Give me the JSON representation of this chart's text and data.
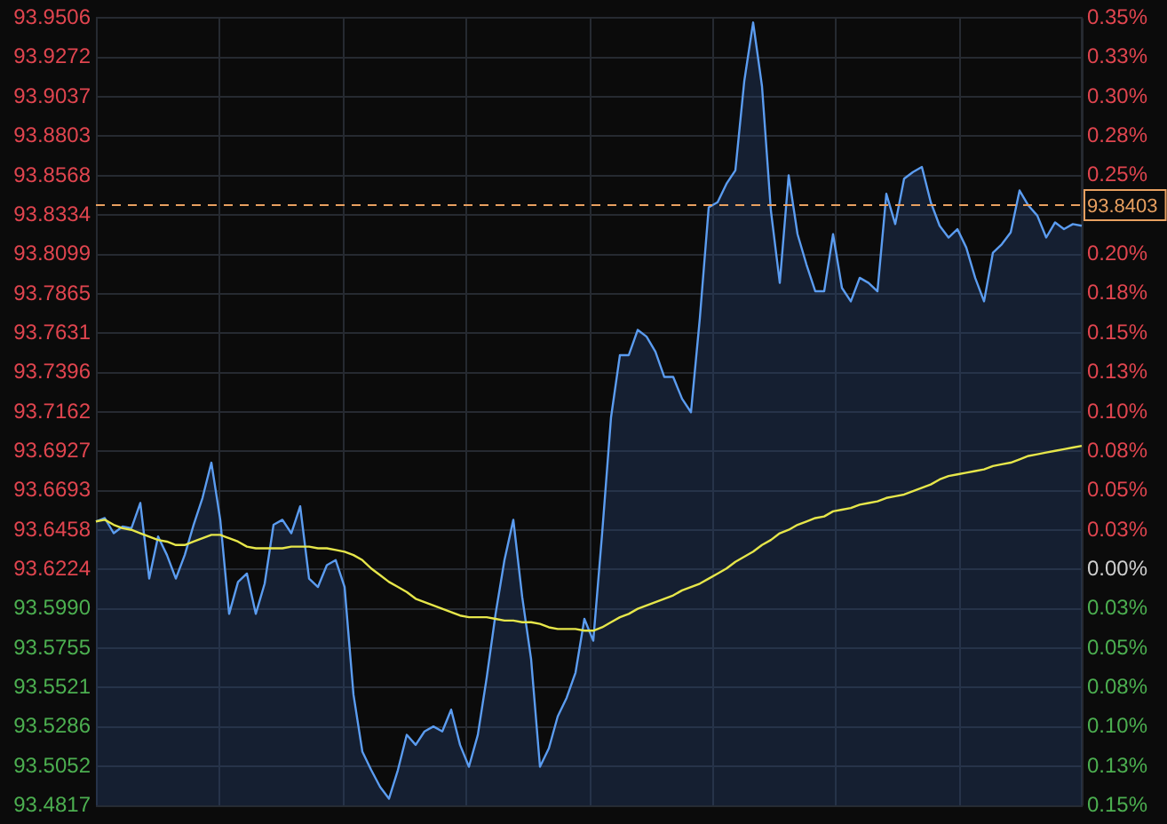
{
  "chart_data": {
    "type": "line",
    "categories": [
      null,
      null,
      null,
      null,
      null,
      null,
      null,
      null,
      null,
      null,
      null,
      null,
      null,
      null,
      null,
      null,
      null,
      null,
      null,
      null,
      null,
      null,
      null,
      null,
      null,
      null,
      null,
      null,
      null,
      null,
      null,
      null,
      null,
      null,
      null,
      null,
      null,
      null,
      null,
      null,
      null,
      null,
      null,
      null,
      null,
      null,
      null,
      null,
      null,
      null,
      null,
      null,
      null,
      null,
      null,
      null,
      null,
      null,
      null,
      null,
      null,
      null,
      null,
      null,
      null,
      null,
      null,
      null,
      null,
      null,
      null,
      null,
      null,
      null,
      null,
      null,
      null,
      null,
      null,
      null,
      null,
      null,
      null,
      null,
      null,
      null,
      null,
      null,
      null,
      null,
      null,
      null,
      null,
      null,
      null,
      null,
      null,
      null,
      null,
      null,
      null,
      null,
      null,
      null,
      null,
      null,
      null,
      null,
      null,
      null,
      null,
      null
    ],
    "series": [
      {
        "type": "area",
        "color": "#5b9cf0",
        "values": [
          93.651,
          93.653,
          93.644,
          93.648,
          93.647,
          93.662,
          93.617,
          93.642,
          93.631,
          93.617,
          93.631,
          93.649,
          93.665,
          93.686,
          93.652,
          93.596,
          93.615,
          93.62,
          93.596,
          93.614,
          93.649,
          93.652,
          93.644,
          93.66,
          93.617,
          93.612,
          93.625,
          93.628,
          93.612,
          93.548,
          93.514,
          93.503,
          93.493,
          93.486,
          93.503,
          93.524,
          93.518,
          93.526,
          93.529,
          93.526,
          93.539,
          93.518,
          93.505,
          93.524,
          93.558,
          93.596,
          93.628,
          93.652,
          93.606,
          93.569,
          93.505,
          93.516,
          93.535,
          93.546,
          93.561,
          93.593,
          93.58,
          93.644,
          93.713,
          93.75,
          93.75,
          93.765,
          93.761,
          93.752,
          93.737,
          93.737,
          93.724,
          93.716,
          93.772,
          93.838,
          93.841,
          93.852,
          93.86,
          93.913,
          93.948,
          93.91,
          93.836,
          93.793,
          93.857,
          93.822,
          93.804,
          93.788,
          93.788,
          93.822,
          93.79,
          93.782,
          93.796,
          93.793,
          93.788,
          93.846,
          93.828,
          93.855,
          93.859,
          93.862,
          93.841,
          93.827,
          93.82,
          93.825,
          93.814,
          93.796,
          93.782,
          93.811,
          93.816,
          93.823,
          93.848,
          93.839,
          93.833,
          93.82,
          93.829,
          93.825,
          93.828,
          93.827
        ]
      },
      {
        "type": "line",
        "color": "#e6e64a",
        "values": [
          93.651,
          93.652,
          93.649,
          93.647,
          93.646,
          93.644,
          93.642,
          93.64,
          93.639,
          93.637,
          93.637,
          93.639,
          93.641,
          93.643,
          93.643,
          93.641,
          93.639,
          93.636,
          93.635,
          93.635,
          93.635,
          93.635,
          93.636,
          93.636,
          93.636,
          93.635,
          93.635,
          93.634,
          93.633,
          93.631,
          93.628,
          93.623,
          93.619,
          93.615,
          93.612,
          93.609,
          93.605,
          93.603,
          93.601,
          93.599,
          93.597,
          93.595,
          93.594,
          93.594,
          93.594,
          93.593,
          93.592,
          93.592,
          93.591,
          93.591,
          93.59,
          93.588,
          93.587,
          93.587,
          93.587,
          93.586,
          93.586,
          93.588,
          93.591,
          93.594,
          93.596,
          93.599,
          93.601,
          93.603,
          93.605,
          93.607,
          93.61,
          93.612,
          93.614,
          93.617,
          93.62,
          93.623,
          93.627,
          93.63,
          93.633,
          93.637,
          93.64,
          93.644,
          93.646,
          93.649,
          93.651,
          93.653,
          93.654,
          93.657,
          93.658,
          93.659,
          93.661,
          93.662,
          93.663,
          93.665,
          93.666,
          93.667,
          93.669,
          93.671,
          93.673,
          93.676,
          93.678,
          93.679,
          93.68,
          93.681,
          93.682,
          93.684,
          93.685,
          93.686,
          93.688,
          93.69,
          93.691,
          93.692,
          93.693,
          93.694,
          93.695,
          93.696
        ]
      }
    ],
    "ylim": [
      93.4817,
      93.9506
    ],
    "yticks": [
      93.4817,
      93.5052,
      93.5286,
      93.5521,
      93.5755,
      {
        "value": 93.599,
        "label": "93.5990"
      },
      93.6224,
      93.6458,
      93.6693,
      93.6927,
      93.7162,
      93.7396,
      93.7631,
      93.7865,
      93.8099,
      93.8334,
      93.8568,
      93.8803,
      93.9037,
      93.9272,
      93.9506
    ],
    "y2lim": [
      -0.1503,
      0.3506
    ],
    "y2ticks": [
      {
        "value": -0.1503,
        "label": "0.15%"
      },
      {
        "value": -0.1253,
        "label": "0.13%"
      },
      {
        "value": -0.1002,
        "label": "0.10%"
      },
      {
        "value": -0.0752,
        "label": "0.08%"
      },
      {
        "value": -0.0501,
        "label": "0.05%"
      },
      {
        "value": -0.0251,
        "label": "0.03%"
      },
      {
        "value": 0,
        "label": "0.00%"
      },
      {
        "value": 0.0251,
        "label": "0.03%"
      },
      {
        "value": 0.0501,
        "label": "0.05%"
      },
      {
        "value": 0.0752,
        "label": "0.08%"
      },
      {
        "value": 0.1002,
        "label": "0.10%"
      },
      {
        "value": 0.1253,
        "label": "0.13%"
      },
      {
        "value": 0.1503,
        "label": "0.15%"
      },
      {
        "value": 0.1754,
        "label": "0.18%"
      },
      {
        "value": 0.2004,
        "label": "0.20%"
      },
      {
        "value": 0.2255,
        "label": null
      },
      {
        "value": 0.2505,
        "label": "0.25%"
      },
      {
        "value": 0.2756,
        "label": "0.28%"
      },
      {
        "value": 0.3006,
        "label": "0.30%"
      },
      {
        "value": 0.3257,
        "label": "0.33%"
      },
      {
        "value": 0.3506,
        "label": "0.35%"
      }
    ],
    "ref_lines": [
      {
        "axis": "y",
        "value": 93.8403,
        "label": "93.8403",
        "color": "#e8a060",
        "line_style": "dashed"
      }
    ],
    "grid": true,
    "legend": false
  }
}
